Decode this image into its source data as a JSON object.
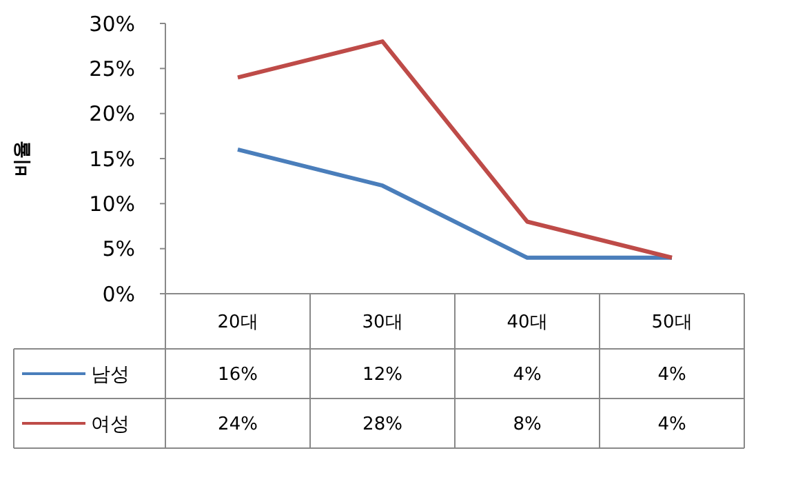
{
  "chart_data": {
    "type": "line",
    "ylabel": "비율",
    "categories": [
      "20대",
      "30대",
      "40대",
      "50대"
    ],
    "series": [
      {
        "name": "남성",
        "color": "#4a7ebb",
        "values": [
          16,
          12,
          4,
          4
        ],
        "value_labels": [
          "16%",
          "12%",
          "4%",
          "4%"
        ]
      },
      {
        "name": "여성",
        "color": "#be4b48",
        "values": [
          24,
          28,
          8,
          4
        ],
        "value_labels": [
          "24%",
          "28%",
          "8%",
          "4%"
        ]
      }
    ],
    "ylim": [
      0,
      30
    ],
    "yticks": [
      {
        "value": 0,
        "label": "0%"
      },
      {
        "value": 5,
        "label": "5%"
      },
      {
        "value": 10,
        "label": "10%"
      },
      {
        "value": 15,
        "label": "15%"
      },
      {
        "value": 20,
        "label": "20%"
      },
      {
        "value": 25,
        "label": "25%"
      },
      {
        "value": 30,
        "label": "30%"
      }
    ],
    "grid": false,
    "legend": "bottom",
    "marker": "none",
    "line_style": "solid"
  }
}
